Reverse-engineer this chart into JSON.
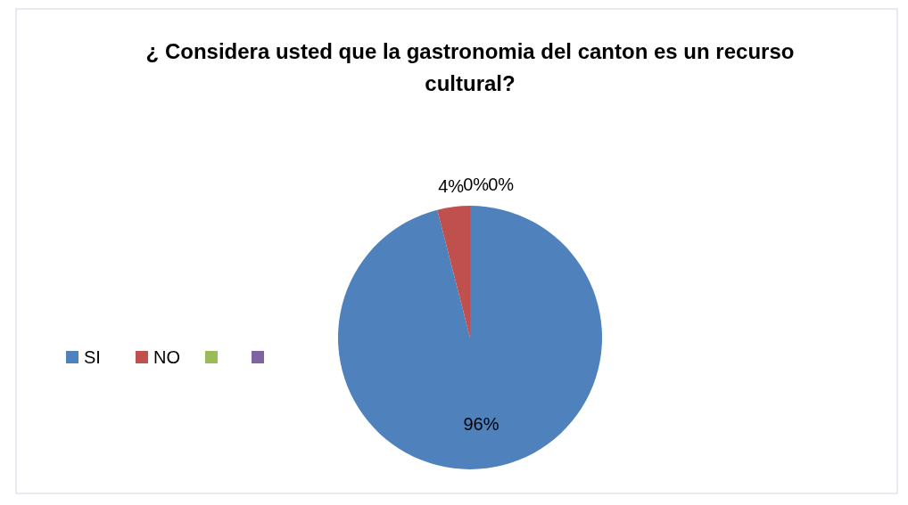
{
  "chart_data": {
    "type": "pie",
    "title": "¿ Considera usted que la gastronomia del canton es un recurso cultural?",
    "categories": [
      "SI",
      "NO",
      null,
      null
    ],
    "values": [
      96,
      4,
      0,
      0
    ],
    "colors": [
      "#4f81bd",
      "#c0504d",
      "#9bbb59",
      "#8064a2"
    ],
    "value_labels": [
      "96%",
      "4%",
      "0%",
      "0%"
    ],
    "legend": "left"
  }
}
